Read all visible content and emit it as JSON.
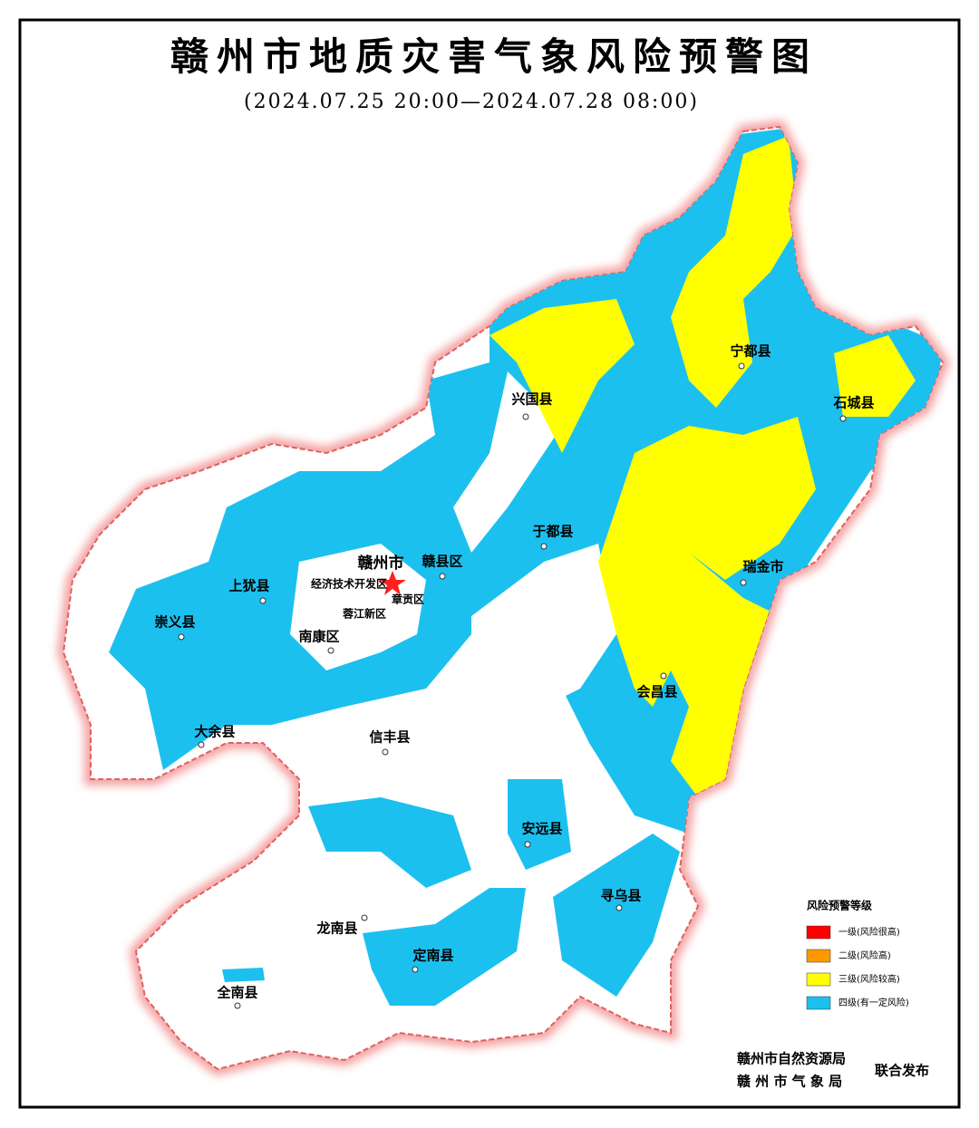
{
  "header": {
    "title": "赣州市地质灾害气象风险预警图",
    "subtitle": "(2024.07.25 20:00—2024.07.28 08:00)"
  },
  "places": [
    "兴国县",
    "宁都县",
    "石城县",
    "于都县",
    "瑞金市",
    "赣州市",
    "赣县区",
    "经济技术开发区",
    "章贡区",
    "蓉江新区",
    "上犹县",
    "崇义县",
    "南康区",
    "会昌县",
    "大余县",
    "信丰县",
    "安远县",
    "寻乌县",
    "龙南县",
    "定南县",
    "全南县"
  ],
  "legend": {
    "title": "风险预警等级",
    "items": [
      {
        "label": "一级(风险很高)",
        "color": "#ff0000"
      },
      {
        "label": "二级(风险高)",
        "color": "#ff9900"
      },
      {
        "label": "三级(风险较高)",
        "color": "#ffff00"
      },
      {
        "label": "四级(有一定风险)",
        "color": "#1cc0ef"
      }
    ]
  },
  "publishers": [
    "赣州市自然资源局",
    "赣 州 市 气 象 局"
  ],
  "joint_release": "联合发布"
}
